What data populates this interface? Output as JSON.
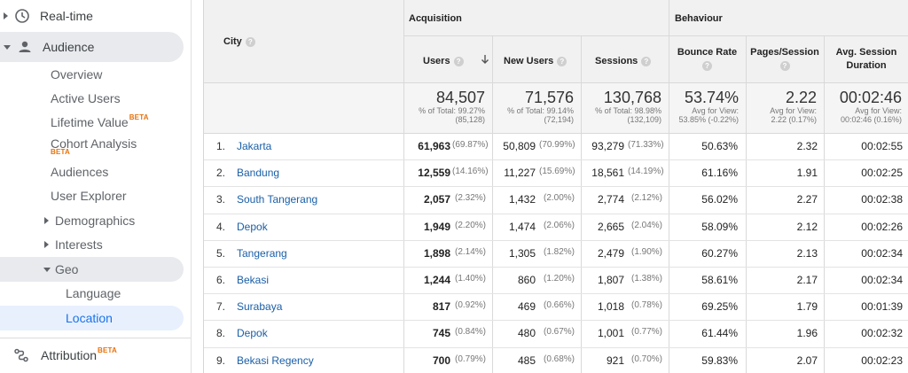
{
  "sidebar": {
    "realtime": "Real-time",
    "audience": "Audience",
    "overview": "Overview",
    "active_users": "Active Users",
    "lifetime_value": "Lifetime Value",
    "cohort_analysis": "Cohort Analysis",
    "beta": "BETA",
    "audiences": "Audiences",
    "user_explorer": "User Explorer",
    "demographics": "Demographics",
    "interests": "Interests",
    "geo": "Geo",
    "language": "Language",
    "location": "Location",
    "attribution": "Attribution"
  },
  "table": {
    "dimension_header": "City",
    "groups": {
      "acquisition": "Acquisition",
      "behaviour": "Behaviour"
    },
    "columns": {
      "users": "Users",
      "new_users": "New Users",
      "sessions": "Sessions",
      "bounce_rate": "Bounce Rate",
      "pages_session": "Pages/Session",
      "avg_duration_1": "Avg. Session",
      "avg_duration_2": "Duration"
    },
    "totals": {
      "users": {
        "value": "84,507",
        "line1": "% of Total: 99.27%",
        "line2": "(85,128)"
      },
      "new_users": {
        "value": "71,576",
        "line1": "% of Total: 99.14%",
        "line2": "(72,194)"
      },
      "sessions": {
        "value": "130,768",
        "line1": "% of Total: 98.98%",
        "line2": "(132,109)"
      },
      "bounce_rate": {
        "value": "53.74%",
        "line1": "Avg for View:",
        "line2": "53.85% (-0.22%)"
      },
      "pages_session": {
        "value": "2.22",
        "line1": "Avg for View:",
        "line2": "2.22 (0.17%)"
      },
      "avg_duration": {
        "value": "00:02:46",
        "line1": "Avg for View:",
        "line2": "00:02:46 (0.16%)"
      }
    },
    "rows": [
      {
        "idx": "1.",
        "city": "Jakarta",
        "users": "61,963",
        "users_pct": "(69.87%)",
        "new_users": "50,809",
        "new_users_pct": "(70.99%)",
        "sessions": "93,279",
        "sessions_pct": "(71.33%)",
        "bounce": "50.63%",
        "pages": "2.32",
        "duration": "00:02:55"
      },
      {
        "idx": "2.",
        "city": "Bandung",
        "users": "12,559",
        "users_pct": "(14.16%)",
        "new_users": "11,227",
        "new_users_pct": "(15.69%)",
        "sessions": "18,561",
        "sessions_pct": "(14.19%)",
        "bounce": "61.16%",
        "pages": "1.91",
        "duration": "00:02:25"
      },
      {
        "idx": "3.",
        "city": "South Tangerang",
        "users": "2,057",
        "users_pct": "(2.32%)",
        "new_users": "1,432",
        "new_users_pct": "(2.00%)",
        "sessions": "2,774",
        "sessions_pct": "(2.12%)",
        "bounce": "56.02%",
        "pages": "2.27",
        "duration": "00:02:38"
      },
      {
        "idx": "4.",
        "city": "Depok",
        "users": "1,949",
        "users_pct": "(2.20%)",
        "new_users": "1,474",
        "new_users_pct": "(2.06%)",
        "sessions": "2,665",
        "sessions_pct": "(2.04%)",
        "bounce": "58.09%",
        "pages": "2.12",
        "duration": "00:02:26"
      },
      {
        "idx": "5.",
        "city": "Tangerang",
        "users": "1,898",
        "users_pct": "(2.14%)",
        "new_users": "1,305",
        "new_users_pct": "(1.82%)",
        "sessions": "2,479",
        "sessions_pct": "(1.90%)",
        "bounce": "60.27%",
        "pages": "2.13",
        "duration": "00:02:34"
      },
      {
        "idx": "6.",
        "city": "Bekasi",
        "users": "1,244",
        "users_pct": "(1.40%)",
        "new_users": "860",
        "new_users_pct": "(1.20%)",
        "sessions": "1,807",
        "sessions_pct": "(1.38%)",
        "bounce": "58.61%",
        "pages": "2.17",
        "duration": "00:02:34"
      },
      {
        "idx": "7.",
        "city": "Surabaya",
        "users": "817",
        "users_pct": "(0.92%)",
        "new_users": "469",
        "new_users_pct": "(0.66%)",
        "sessions": "1,018",
        "sessions_pct": "(0.78%)",
        "bounce": "69.25%",
        "pages": "1.79",
        "duration": "00:01:39"
      },
      {
        "idx": "8.",
        "city": "Depok",
        "users": "745",
        "users_pct": "(0.84%)",
        "new_users": "480",
        "new_users_pct": "(0.67%)",
        "sessions": "1,001",
        "sessions_pct": "(0.77%)",
        "bounce": "61.44%",
        "pages": "1.96",
        "duration": "00:02:32"
      },
      {
        "idx": "9.",
        "city": "Bekasi Regency",
        "users": "700",
        "users_pct": "(0.79%)",
        "new_users": "485",
        "new_users_pct": "(0.68%)",
        "sessions": "921",
        "sessions_pct": "(0.70%)",
        "bounce": "59.83%",
        "pages": "2.07",
        "duration": "00:02:23"
      }
    ]
  },
  "colors": {
    "link": "#1a5fa8",
    "beta": "#e8710a",
    "active_bg": "#e8f0fe",
    "selected_bg": "#e8eaed"
  },
  "icons": {
    "realtime": "clock-icon",
    "audience": "person-icon",
    "attribution": "attribution-icon",
    "sort": "arrow-down-icon",
    "help": "help-icon"
  }
}
